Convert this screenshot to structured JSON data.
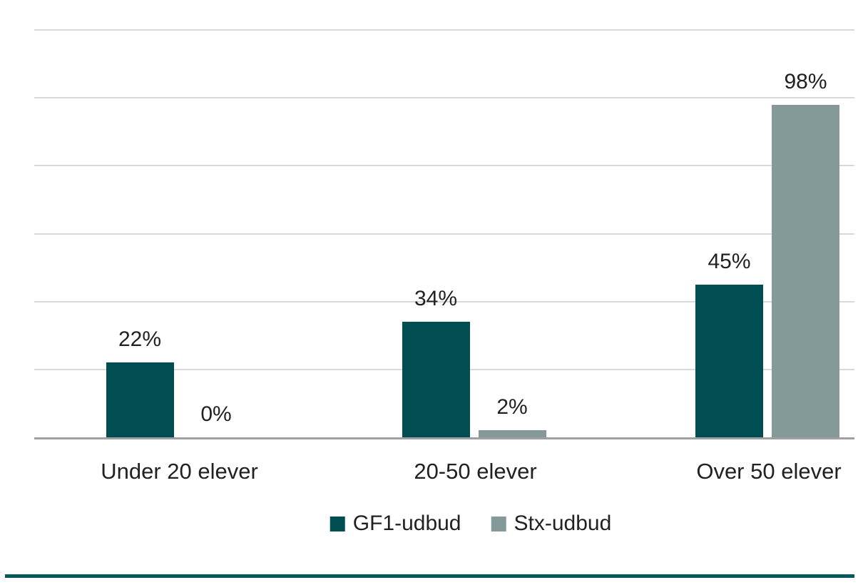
{
  "chart_data": {
    "type": "bar",
    "categories": [
      "Under 20 elever",
      "20-50 elever",
      "Over 50 elever"
    ],
    "series": [
      {
        "name": "GF1-udbud",
        "color": "#004E52",
        "values": [
          22,
          34,
          45
        ]
      },
      {
        "name": "Stx-udbud",
        "color": "#839A98",
        "values": [
          0,
          2,
          98
        ]
      }
    ],
    "data_labels": [
      [
        "22%",
        "34%",
        "45%"
      ],
      [
        "0%",
        "2%",
        "98%"
      ]
    ],
    "value_suffix": "%",
    "title": "",
    "xlabel": "",
    "ylabel": "",
    "ylim": [
      0,
      120
    ],
    "gridline_step": 20,
    "grid": true,
    "legend_position": "bottom",
    "colors": {
      "gridline": "#D9D9D9",
      "axis_line": "#A0A0A3",
      "text": "#212121",
      "background": "#FFFFFF",
      "accent_rule": "#05595C"
    }
  }
}
